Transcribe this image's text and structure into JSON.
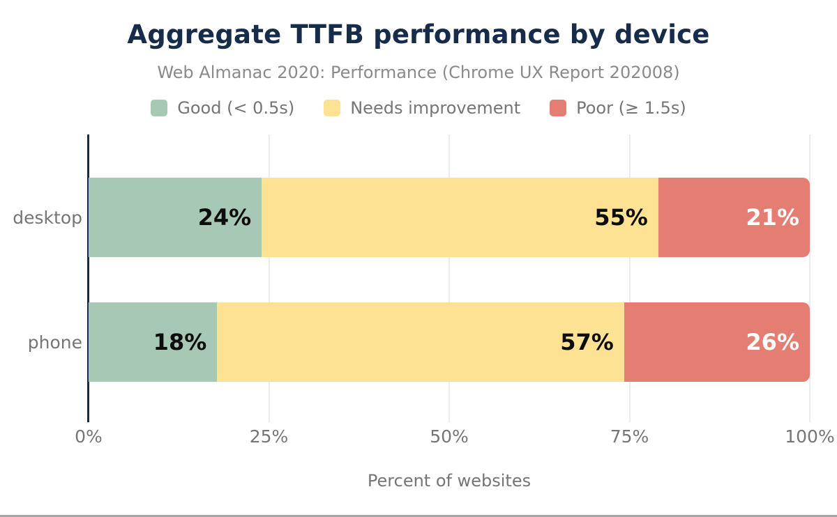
{
  "title": "Aggregate TTFB performance by device",
  "subtitle": "Web Almanac 2020: Performance (Chrome UX Report 202008)",
  "chart_data": {
    "type": "bar",
    "orientation": "horizontal-stacked",
    "title": "Aggregate TTFB performance by device",
    "subtitle": "Web Almanac 2020: Performance (Chrome UX Report 202008)",
    "categories": [
      "desktop",
      "phone"
    ],
    "series": [
      {
        "name": "Good (< 0.5s)",
        "color": "#a6c8b5",
        "label_color": "#0d0d0d",
        "values": [
          24,
          18
        ]
      },
      {
        "name": "Needs improvement",
        "color": "#fde293",
        "label_color": "#0d0d0d",
        "values": [
          55,
          57
        ]
      },
      {
        "name": "Poor (≥ 1.5s)",
        "color": "#e57e72",
        "label_color": "#ffffff",
        "values": [
          21,
          26
        ]
      }
    ],
    "value_suffix": "%",
    "xlabel": "Percent of websites",
    "x_ticks": [
      "0%",
      "25%",
      "50%",
      "75%",
      "100%"
    ],
    "x_tick_values": [
      0,
      25,
      50,
      75,
      100
    ],
    "xlim": [
      0,
      100
    ],
    "grid": true,
    "legend_position": "top"
  },
  "colors": {
    "title_text": "#172b4a",
    "subtitle_text": "#8a8a8a",
    "muted_text": "#757575",
    "axis_line": "#172b4a",
    "gridline": "#ececec",
    "good": "#a6c8b5",
    "needs_improvement": "#fde293",
    "poor": "#e57e72"
  }
}
